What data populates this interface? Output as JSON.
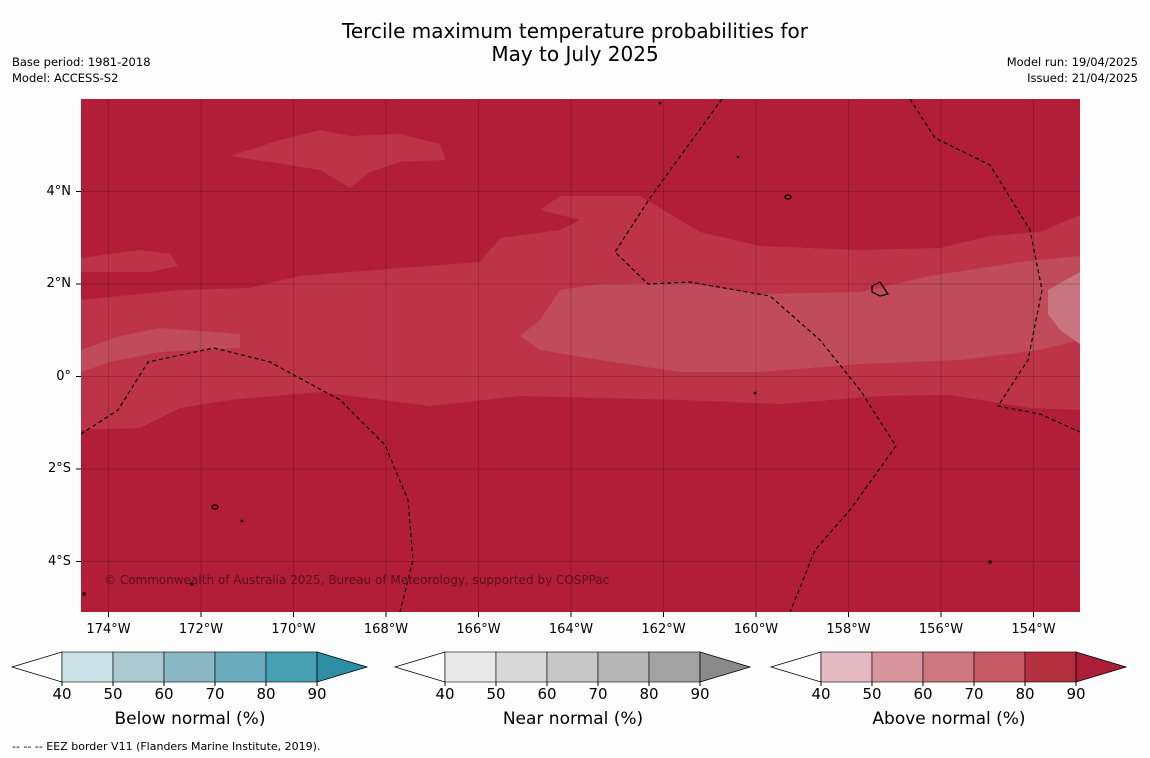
{
  "title": {
    "line1": "Tercile maximum temperature probabilities for",
    "line2": "May to July 2025"
  },
  "meta_left": {
    "base_period": "Base period: 1981-2018",
    "model": "Model: ACCESS-S2"
  },
  "meta_right": {
    "model_run": "Model run: 19/04/2025",
    "issued": "Issued: 21/04/2025"
  },
  "map": {
    "lat_labels": [
      "4°N",
      "2°N",
      "0°",
      "2°S",
      "4°S"
    ],
    "lon_labels": [
      "174°W",
      "172°W",
      "170°W",
      "168°W",
      "166°W",
      "164°W",
      "162°W",
      "160°W",
      "158°W",
      "156°W",
      "154°W"
    ],
    "lat_values": [
      4,
      2,
      0,
      -2,
      -4
    ],
    "lon_values": [
      -174,
      -172,
      -170,
      -168,
      -166,
      -164,
      -162,
      -160,
      -158,
      -156,
      -154
    ],
    "copyright": "© Commonwealth of Australia 2025, Bureau of Meteorology, supported by COSPPac",
    "colors": {
      "above_80_90": "#b21e38",
      "above_70_80": "#bd3348",
      "above_60_70": "#c04c5b",
      "above_50_60": "#c97580",
      "coast": "#000000"
    }
  },
  "colorbars": [
    {
      "label": "Below normal (%)",
      "ticks": [
        "40",
        "50",
        "60",
        "70",
        "80",
        "90"
      ],
      "colors": [
        "#cae2e8",
        "#a9c8cf",
        "#8cb8c6",
        "#6aabbb",
        "#47a0b1",
        "#2e8ea3"
      ]
    },
    {
      "label": "Near normal (%)",
      "ticks": [
        "40",
        "50",
        "60",
        "70",
        "80",
        "90"
      ],
      "colors": [
        "#e9e9e9",
        "#d9d9d9",
        "#c8c8c8",
        "#b6b6b6",
        "#a3a3a3",
        "#8a8a8a"
      ]
    },
    {
      "label": "Above normal (%)",
      "ticks": [
        "40",
        "50",
        "60",
        "70",
        "80",
        "90"
      ],
      "colors": [
        "#e3bac1",
        "#d9959e",
        "#cf7780",
        "#c55a65",
        "#b5303f",
        "#ab1d38"
      ]
    }
  ],
  "footnote": "--  --  -- EEZ border V11 (Flanders Marine Institute, 2019)."
}
